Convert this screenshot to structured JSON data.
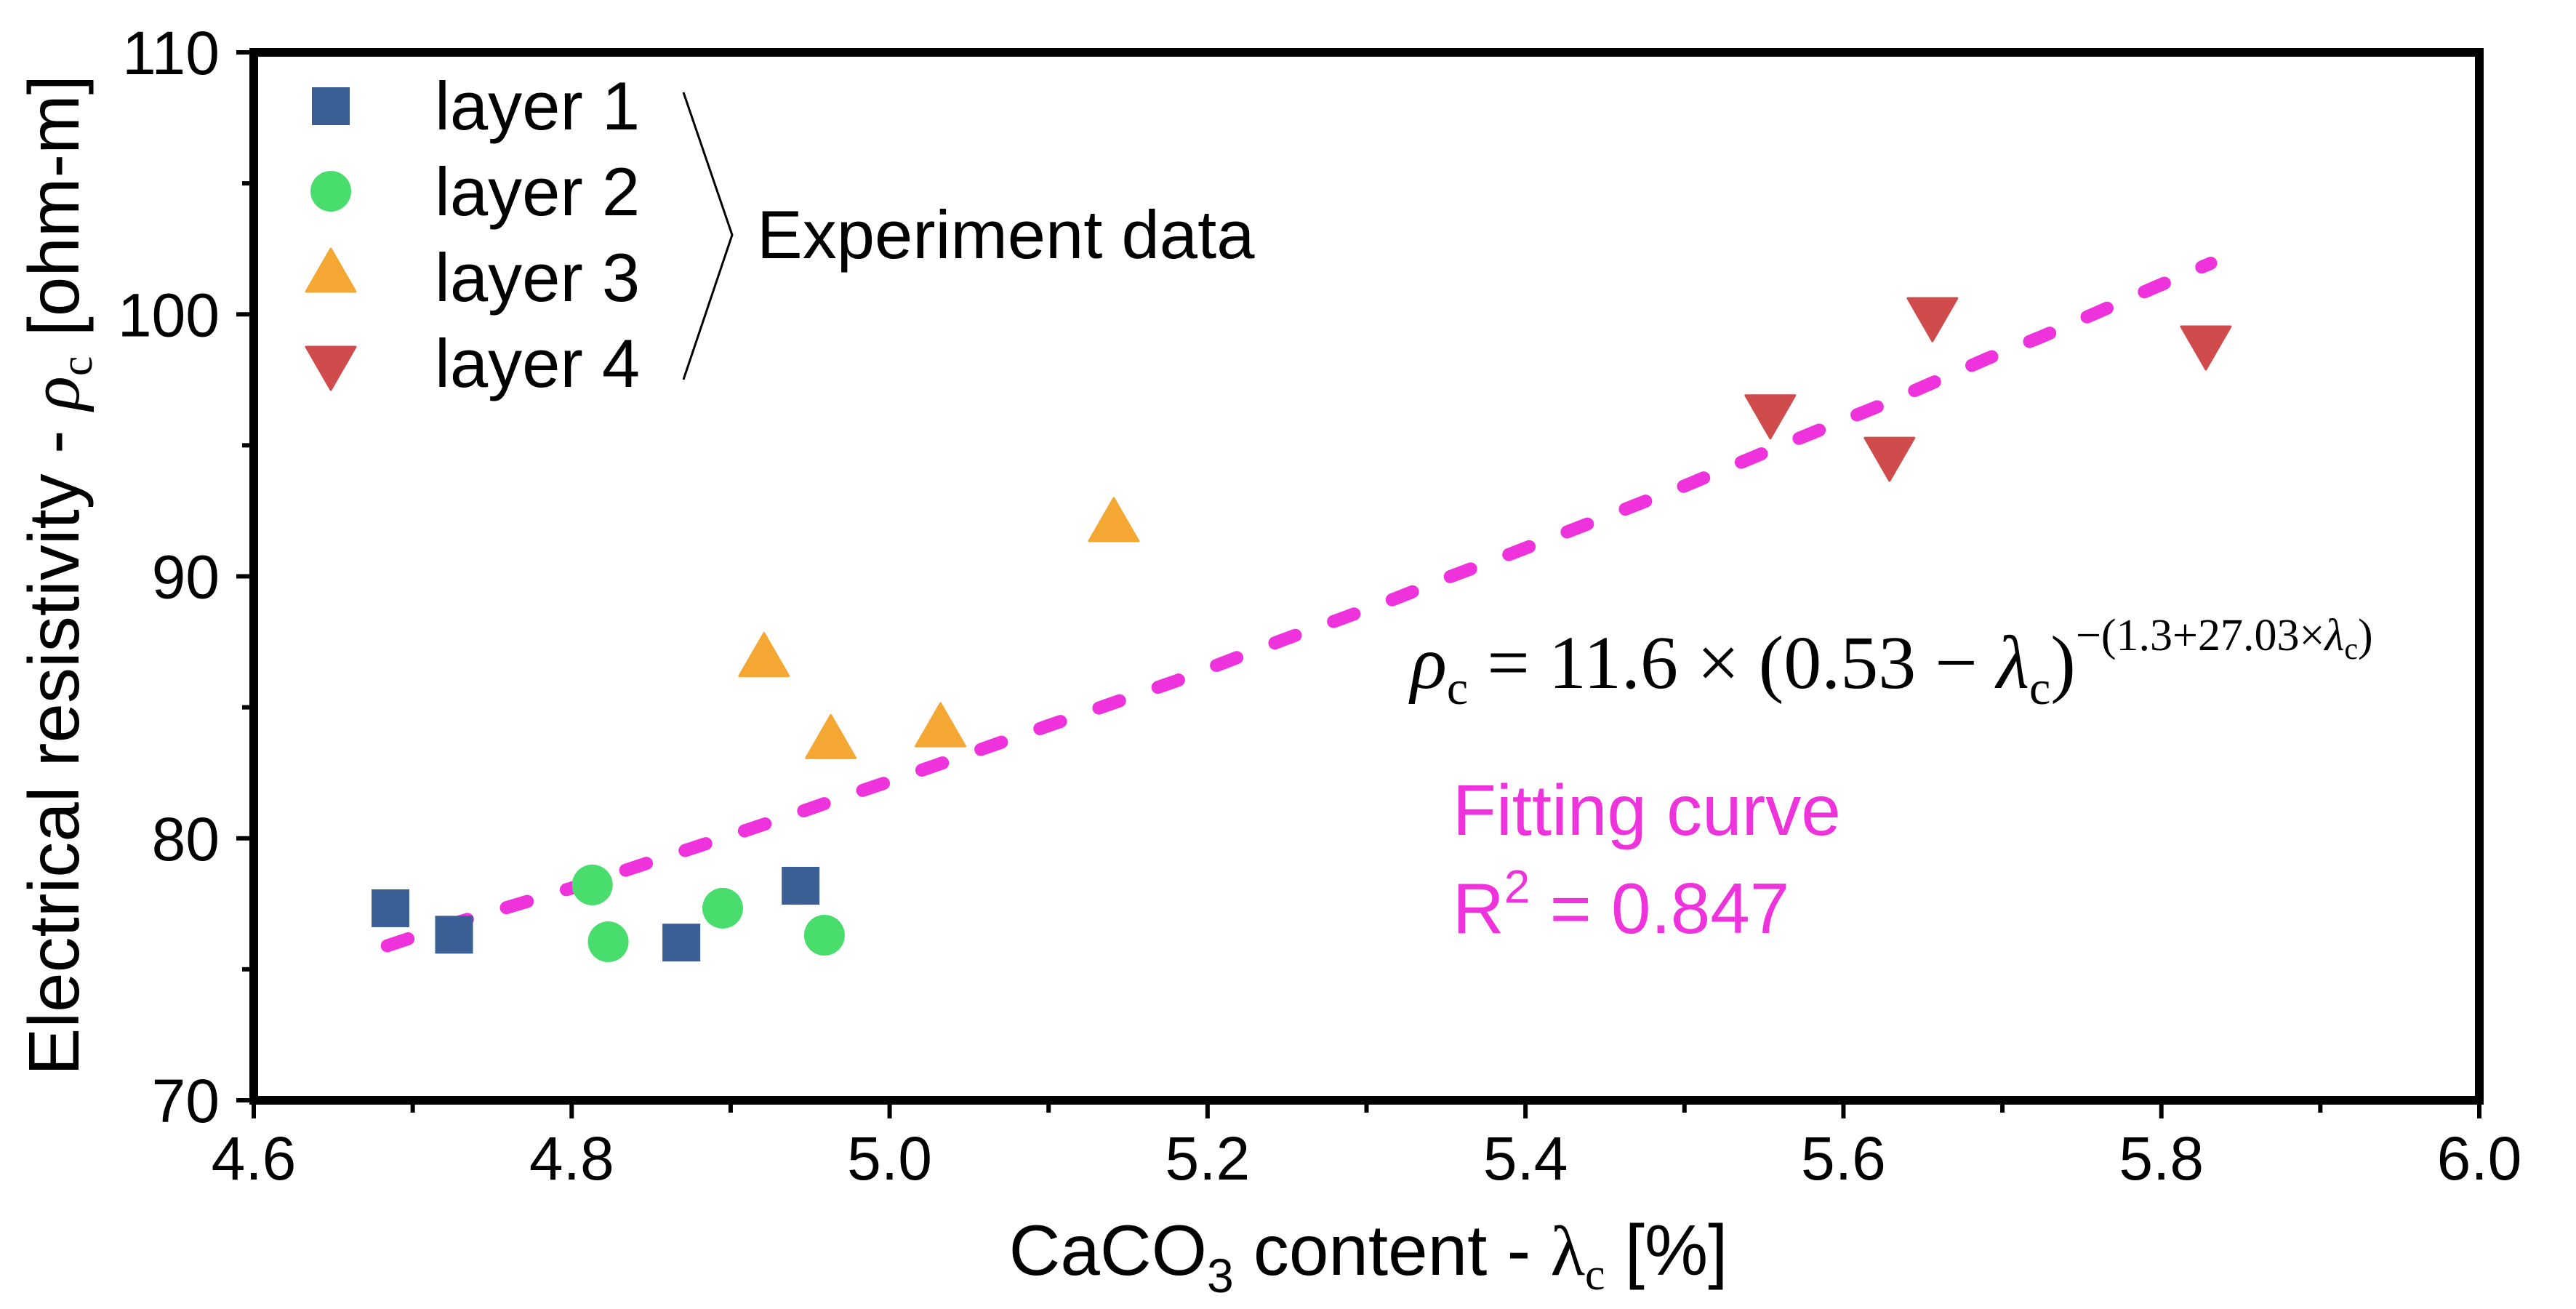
{
  "chart_data": {
    "type": "scatter",
    "title": "",
    "xlabel": {
      "main": "CaCO",
      "sub": "3",
      "rest": " content - ",
      "symbol": "λ",
      "symbol_sub": "c",
      "unit": " [%]"
    },
    "ylabel": {
      "main": "Electrical resistivity - ",
      "symbol": "ρ",
      "symbol_sub": "c",
      "unit": " [ohm-m]"
    },
    "xlim": [
      4.6,
      6.0
    ],
    "ylim": [
      70,
      110
    ],
    "x_major_ticks": [
      4.6,
      4.8,
      5.0,
      5.2,
      5.4,
      5.6,
      5.8,
      6.0
    ],
    "x_tick_labels": [
      "4.6",
      "4.8",
      "5.0",
      "5.2",
      "5.4",
      "5.6",
      "5.8",
      "6.0"
    ],
    "x_minor_ticks": [
      4.7,
      4.9,
      5.1,
      5.3,
      5.5,
      5.7,
      5.9
    ],
    "y_major_ticks": [
      70,
      80,
      90,
      100,
      110
    ],
    "y_tick_labels": [
      "70",
      "80",
      "90",
      "100",
      "110"
    ],
    "y_minor_ticks": [
      75,
      85,
      95,
      105
    ],
    "grid": false,
    "legend_position": "top-left",
    "legend_group_label": "Experiment data",
    "series": [
      {
        "name": "layer 1",
        "marker": "square",
        "color": "#3A5F95",
        "points": [
          [
            4.686,
            77.33
          ],
          [
            4.726,
            76.32
          ],
          [
            4.869,
            76.02
          ],
          [
            4.944,
            78.19
          ]
        ]
      },
      {
        "name": "layer 2",
        "marker": "circle",
        "color": "#48DD6C",
        "points": [
          [
            4.813,
            78.22
          ],
          [
            4.823,
            76.05
          ],
          [
            4.895,
            77.33
          ],
          [
            4.959,
            76.3
          ]
        ]
      },
      {
        "name": "layer 3",
        "marker": "triangle-up",
        "color": "#F4A833",
        "points": [
          [
            4.921,
            87.0
          ],
          [
            4.963,
            83.87
          ],
          [
            5.032,
            84.32
          ],
          [
            5.141,
            92.15
          ]
        ]
      },
      {
        "name": "layer 4",
        "marker": "triangle-down",
        "color": "#D04B4B",
        "points": [
          [
            5.554,
            96.1
          ],
          [
            5.629,
            94.48
          ],
          [
            5.656,
            99.81
          ],
          [
            5.828,
            98.73
          ]
        ]
      }
    ],
    "fit": {
      "name": "Fitting curve",
      "style": "dashed",
      "color": "#EE33DD",
      "r_squared_label": "R",
      "r_squared_sup": "2",
      "r_squared_value": " = 0.847",
      "points": [
        [
          4.684,
          75.9
        ],
        [
          4.726,
          76.75
        ],
        [
          4.8,
          78.1
        ],
        [
          4.905,
          80.21
        ],
        [
          4.937,
          80.86
        ],
        [
          4.97,
          81.56
        ],
        [
          5.006,
          82.3
        ],
        [
          5.041,
          83.04
        ],
        [
          5.1,
          84.3
        ],
        [
          5.18,
          86.0
        ],
        [
          5.249,
          87.61
        ],
        [
          5.284,
          88.38
        ],
        [
          5.319,
          89.17
        ],
        [
          5.354,
          90.02
        ],
        [
          5.389,
          90.82
        ],
        [
          5.424,
          91.64
        ],
        [
          5.458,
          92.45
        ],
        [
          5.5,
          93.45
        ],
        [
          5.553,
          94.79
        ],
        [
          5.588,
          95.66
        ],
        [
          5.624,
          96.54
        ],
        [
          5.658,
          97.44
        ],
        [
          5.69,
          98.3
        ],
        [
          5.724,
          99.13
        ],
        [
          5.758,
          100.03
        ],
        [
          5.789,
          100.85
        ],
        [
          5.831,
          101.95
        ]
      ]
    },
    "equation": {
      "lhs_symbol": "ρ",
      "lhs_sub": "c",
      "body": " = 11.6 × (0.53 − ",
      "lambda": "λ",
      "lambda_sub": "c",
      "close": ")",
      "exponent_pre": "−(1.3+27.03×",
      "exponent_lambda": "λ",
      "exponent_lambda_sub": "c",
      "exponent_close": ")"
    }
  }
}
